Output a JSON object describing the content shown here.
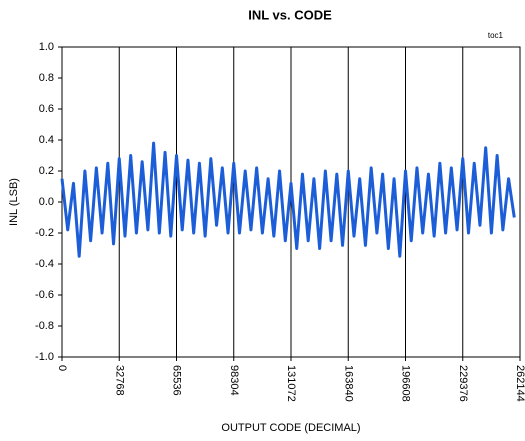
{
  "chart_data": {
    "type": "line",
    "title": "INL vs. CODE",
    "annotation": "toc1",
    "xlabel": "OUTPUT CODE (DECIMAL)",
    "ylabel": "INL (LSB)",
    "x": [
      0,
      3277,
      6554,
      9831,
      13108,
      16385,
      19662,
      22939,
      26216,
      29493,
      32770,
      36047,
      39324,
      42601,
      45878,
      49155,
      52432,
      55709,
      58986,
      62263,
      65540,
      68817,
      72094,
      75371,
      78648,
      81925,
      85202,
      88479,
      91756,
      95033,
      98310,
      101587,
      104864,
      108141,
      111418,
      114695,
      117972,
      121249,
      124526,
      127803,
      131080,
      134357,
      137634,
      140911,
      144188,
      147465,
      150742,
      154019,
      157296,
      160573,
      163850,
      167127,
      170404,
      173681,
      176958,
      180235,
      183512,
      186789,
      190066,
      193343,
      196620,
      199897,
      203174,
      206451,
      209728,
      213005,
      216282,
      219559,
      222836,
      226113,
      229390,
      232667,
      235944,
      239221,
      242498,
      245775,
      249052,
      252329,
      255606,
      258883
    ],
    "series": [
      {
        "color": "#1c5ed8",
        "values": [
          0.15,
          -0.18,
          0.12,
          -0.35,
          0.2,
          -0.25,
          0.22,
          -0.2,
          0.25,
          -0.27,
          0.28,
          -0.22,
          0.3,
          -0.2,
          0.26,
          -0.18,
          0.38,
          -0.2,
          0.32,
          -0.22,
          0.3,
          -0.18,
          0.27,
          -0.2,
          0.25,
          -0.22,
          0.28,
          -0.15,
          0.22,
          -0.2,
          0.25,
          -0.2,
          0.2,
          -0.18,
          0.22,
          -0.2,
          0.15,
          -0.22,
          0.2,
          -0.25,
          0.12,
          -0.3,
          0.18,
          -0.25,
          0.15,
          -0.3,
          0.2,
          -0.25,
          0.18,
          -0.28,
          0.2,
          -0.22,
          0.15,
          -0.28,
          0.22,
          -0.2,
          0.18,
          -0.3,
          0.15,
          -0.35,
          0.2,
          -0.25,
          0.22,
          -0.2,
          0.18,
          -0.22,
          0.25,
          -0.2,
          0.22,
          -0.18,
          0.28,
          -0.2,
          0.25,
          -0.15,
          0.35,
          -0.2,
          0.3,
          -0.18,
          0.15,
          -0.1
        ]
      }
    ],
    "xlim": [
      0,
      262144
    ],
    "xticks": [
      0,
      32768,
      65536,
      98304,
      131072,
      163840,
      196608,
      229376,
      262144
    ],
    "ylim": [
      -1,
      1
    ],
    "yticks": [
      {
        "value": -1,
        "label": "-1.0"
      },
      -0.8,
      -0.6,
      -0.4,
      -0.2,
      {
        "value": 0,
        "label": "0.0"
      },
      0.2,
      0.4,
      0.6,
      0.8,
      {
        "value": 1,
        "label": "1.0"
      }
    ],
    "grid": "x"
  }
}
